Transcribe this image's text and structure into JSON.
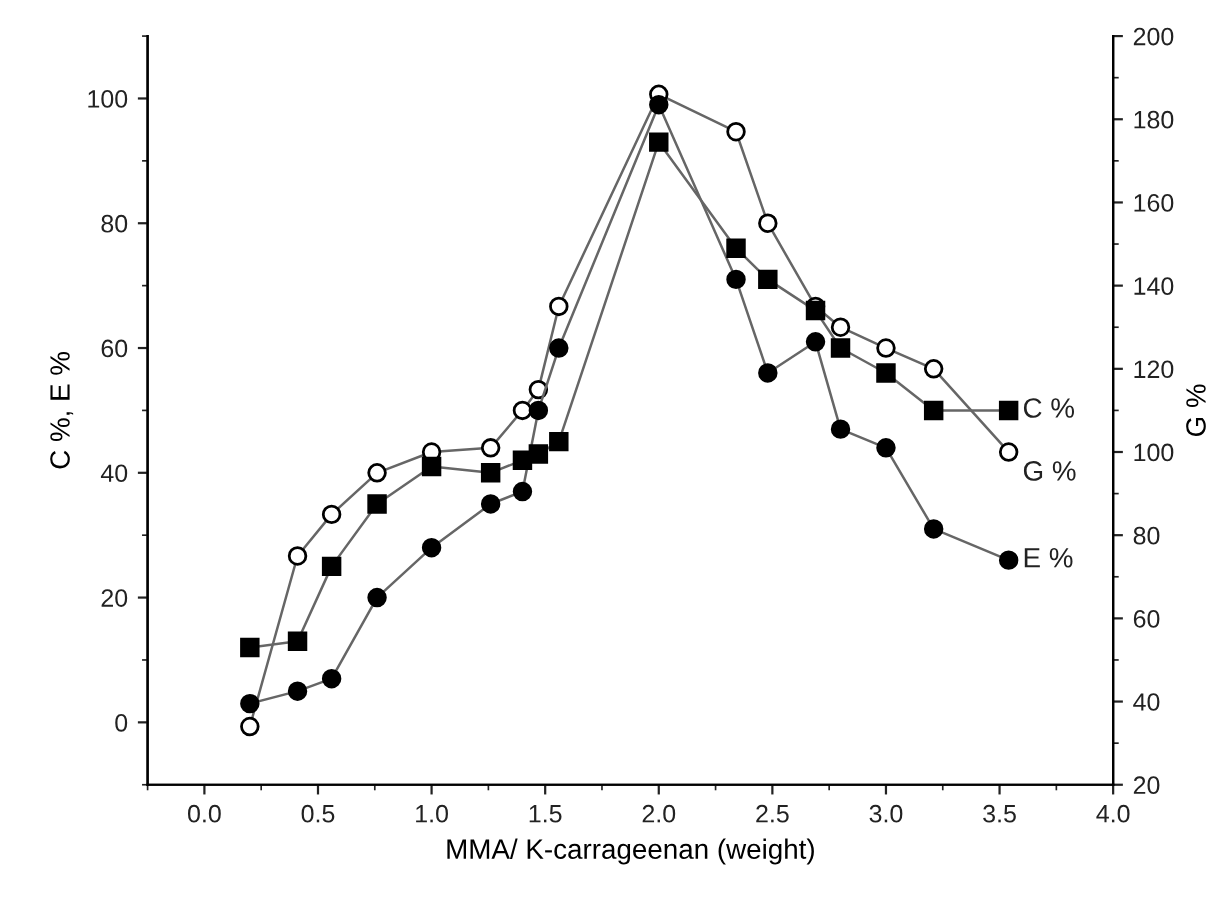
{
  "chart_data": {
    "type": "line",
    "xlabel": "MMA/ Κ-carrageenan (weight)",
    "ylabel": "C %, E %",
    "y2label": "G %",
    "x": [
      0.2,
      0.41,
      0.56,
      0.76,
      1.0,
      1.26,
      1.4,
      1.47,
      1.56,
      2.0,
      2.34,
      2.48,
      2.69,
      2.8,
      3.0,
      3.21,
      3.54
    ],
    "series": [
      {
        "name": "C %",
        "color": "#000000",
        "marker": "square",
        "values": [
          12,
          13,
          25,
          35,
          41,
          40,
          42,
          43,
          45,
          93,
          76,
          71,
          66,
          60,
          56,
          50,
          50
        ]
      },
      {
        "name": "G %",
        "color": "#ffffff",
        "marker": "circle",
        "axis": "y2",
        "values": [
          34,
          75,
          85,
          95,
          100,
          101,
          110,
          115,
          135,
          186,
          177,
          155,
          135,
          130,
          125,
          120,
          100
        ]
      },
      {
        "name": "E %",
        "color": "#000000",
        "marker": "circle",
        "values": [
          3,
          5,
          7,
          20,
          28,
          35,
          37,
          50,
          60,
          99,
          71,
          56,
          61,
          47,
          44,
          31,
          26
        ]
      }
    ],
    "xlim": [
      -0.25,
      4.0
    ],
    "xticks": [
      {
        "value": 0,
        "label": "0.0"
      },
      0.5,
      {
        "value": 1,
        "label": "1.0"
      },
      1.5,
      {
        "value": 2,
        "label": "2.0"
      },
      2.5,
      {
        "value": 3,
        "label": "3.0"
      },
      3.5,
      {
        "value": 4,
        "label": "4.0"
      }
    ],
    "ylim": [
      -10,
      110
    ],
    "yticks": [
      0,
      20,
      40,
      60,
      80,
      100
    ],
    "y2lim": [
      20,
      200
    ],
    "y2ticks": [
      20,
      40,
      60,
      80,
      100,
      120,
      140,
      160,
      180,
      200
    ],
    "grid": false,
    "legend": false
  }
}
